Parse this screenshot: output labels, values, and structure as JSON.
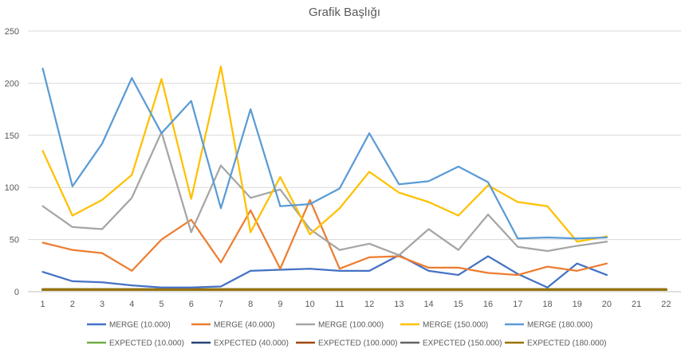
{
  "chart_data": {
    "type": "line",
    "title": "Grafik Başlığı",
    "xlabel": "",
    "ylabel": "",
    "categories": [
      "1",
      "2",
      "3",
      "4",
      "5",
      "6",
      "7",
      "8",
      "9",
      "10",
      "11",
      "12",
      "13",
      "14",
      "15",
      "16",
      "17",
      "18",
      "19",
      "20",
      "21",
      "22"
    ],
    "y_ticks": [
      "0",
      "50",
      "100",
      "150",
      "200",
      "250"
    ],
    "ylim": [
      0,
      250
    ],
    "grid": "horizontal",
    "legend_position": "bottom",
    "series": [
      {
        "name": "MERGE (10.000)",
        "color": "#4472C4",
        "values": [
          19,
          10,
          9,
          6,
          4,
          4,
          5,
          20,
          21,
          22,
          20,
          20,
          35,
          20,
          16,
          34,
          17,
          4,
          27,
          16,
          null,
          null
        ]
      },
      {
        "name": "MERGE (40.000)",
        "color": "#ED7D31",
        "values": [
          47,
          40,
          37,
          20,
          50,
          69,
          28,
          78,
          22,
          88,
          22,
          33,
          34,
          23,
          23,
          18,
          16,
          24,
          20,
          27,
          null,
          null
        ]
      },
      {
        "name": "MERGE (100.000)",
        "color": "#A5A5A5",
        "values": [
          82,
          62,
          60,
          90,
          153,
          57,
          121,
          90,
          98,
          60,
          40,
          46,
          35,
          60,
          40,
          74,
          43,
          39,
          44,
          48,
          null,
          null
        ]
      },
      {
        "name": "MERGE (150.000)",
        "color": "#FFC000",
        "values": [
          135,
          73,
          88,
          112,
          204,
          89,
          216,
          57,
          110,
          55,
          80,
          115,
          95,
          86,
          73,
          102,
          86,
          82,
          48,
          53,
          null,
          null
        ]
      },
      {
        "name": "MERGE (180.000)",
        "color": "#5B9BD5",
        "values": [
          214,
          101,
          142,
          205,
          152,
          183,
          80,
          175,
          82,
          84,
          99,
          152,
          103,
          106,
          120,
          105,
          51,
          52,
          51,
          52,
          null,
          null
        ]
      },
      {
        "name": "EXPECTED (10.000)",
        "color": "#70AD47",
        "values": [
          2,
          2,
          2,
          2,
          2,
          2,
          2,
          2,
          2,
          2,
          2,
          2,
          2,
          2,
          2,
          2,
          2,
          2,
          2,
          2,
          2,
          2
        ]
      },
      {
        "name": "EXPECTED (40.000)",
        "color": "#264478",
        "values": [
          2,
          2,
          2,
          2,
          2,
          2,
          2,
          2,
          2,
          2,
          2,
          2,
          2,
          2,
          2,
          2,
          2,
          2,
          2,
          2,
          2,
          2
        ]
      },
      {
        "name": "EXPECTED (100.000)",
        "color": "#9E480E",
        "values": [
          2,
          2,
          2,
          2,
          2,
          2,
          2,
          2,
          2,
          2,
          2,
          2,
          2,
          2,
          2,
          2,
          2,
          2,
          2,
          2,
          2,
          2
        ]
      },
      {
        "name": "EXPECTED (150.000)",
        "color": "#636363",
        "values": [
          2,
          2,
          2,
          2,
          2,
          2,
          2,
          2,
          2,
          2,
          2,
          2,
          2,
          2,
          2,
          2,
          2,
          2,
          2,
          2,
          2,
          2
        ]
      },
      {
        "name": "EXPECTED (180.000)",
        "color": "#997300",
        "values": [
          2,
          2,
          2,
          2,
          2,
          2,
          2,
          2,
          2,
          2,
          2,
          2,
          2,
          2,
          2,
          2,
          2,
          2,
          2,
          2,
          2,
          2
        ]
      }
    ]
  }
}
